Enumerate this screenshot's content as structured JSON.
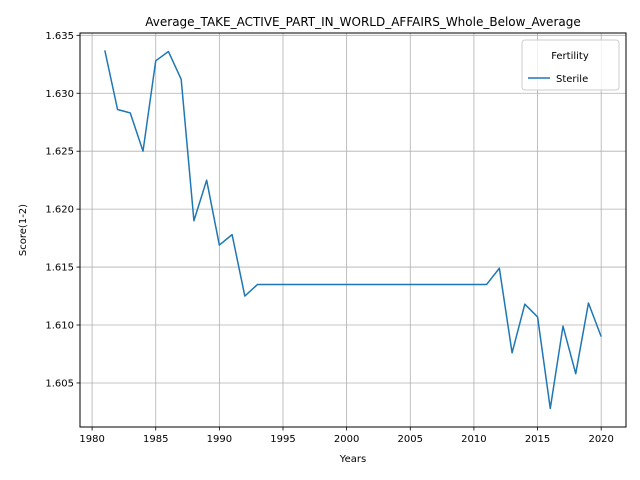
{
  "chart_data": {
    "type": "line",
    "title": "Average_TAKE_ACTIVE_PART_IN_WORLD_AFFAIRS_Whole_Below_Average",
    "xlabel": "Years",
    "ylabel": "Score(1-2)",
    "xlim": [
      1979.05,
      2021.95
    ],
    "ylim": [
      1.6012,
      1.6352
    ],
    "xticks": [
      1980,
      1985,
      1990,
      1995,
      2000,
      2005,
      2010,
      2015,
      2020
    ],
    "xtick_labels": [
      "1980",
      "1985",
      "1990",
      "1995",
      "2000",
      "2005",
      "2010",
      "2015",
      "2020"
    ],
    "yticks": [
      1.605,
      1.61,
      1.615,
      1.62,
      1.625,
      1.63,
      1.635
    ],
    "ytick_labels": [
      "1.605",
      "1.610",
      "1.615",
      "1.620",
      "1.625",
      "1.630",
      "1.635"
    ],
    "grid": true,
    "legend": {
      "title": "Fertility",
      "position": "upper right"
    },
    "series": [
      {
        "name": "Sterile",
        "color": "#1f77b4",
        "x": [
          1981,
          1982,
          1983,
          1984,
          1985,
          1986,
          1987,
          1988,
          1989,
          1990,
          1991,
          1992,
          1993,
          1994,
          1995,
          1996,
          1997,
          1998,
          1999,
          2000,
          2001,
          2002,
          2003,
          2004,
          2005,
          2006,
          2007,
          2008,
          2009,
          2010,
          2011,
          2012,
          2013,
          2014,
          2015,
          2016,
          2017,
          2018,
          2019,
          2020
        ],
        "y": [
          1.6337,
          1.6286,
          1.6283,
          1.625,
          1.6328,
          1.6336,
          1.6312,
          1.619,
          1.6225,
          1.6169,
          1.6178,
          1.6125,
          1.6135,
          1.6135,
          1.6135,
          1.6135,
          1.6135,
          1.6135,
          1.6135,
          1.6135,
          1.6135,
          1.6135,
          1.6135,
          1.6135,
          1.6135,
          1.6135,
          1.6135,
          1.6135,
          1.6135,
          1.6135,
          1.6135,
          1.6149,
          1.6076,
          1.6118,
          1.6107,
          1.6028,
          1.6099,
          1.6058,
          1.6119,
          1.609
        ]
      }
    ]
  }
}
